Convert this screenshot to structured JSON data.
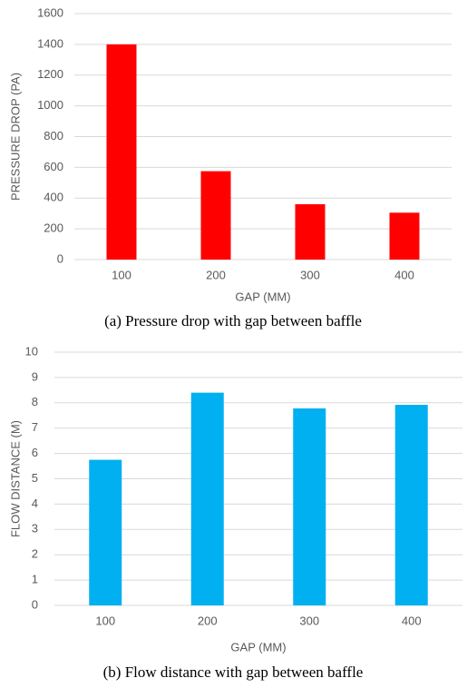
{
  "chart_data": [
    {
      "type": "bar",
      "caption": "(a) Pressure drop with gap between baffle",
      "x_label": "GAP (MM)",
      "y_label": "PRESSURE DROP (PA)",
      "categories": [
        "100",
        "200",
        "300",
        "400"
      ],
      "values": [
        1400,
        575,
        360,
        305
      ],
      "color": "#ff0000",
      "ylim": [
        0,
        1600
      ],
      "yticks": [
        0,
        200,
        400,
        600,
        800,
        1000,
        1200,
        1400,
        1600
      ],
      "grid": true
    },
    {
      "type": "bar",
      "caption": "(b) Flow distance with gap between baffle",
      "x_label": "GAP (MM)",
      "y_label": "FLOW DISTANCE (M)",
      "categories": [
        "100",
        "200",
        "300",
        "400"
      ],
      "values": [
        5.75,
        8.4,
        7.78,
        7.92
      ],
      "color": "#00b0f0",
      "ylim": [
        0,
        10
      ],
      "yticks": [
        0,
        1,
        2,
        3,
        4,
        5,
        6,
        7,
        8,
        9,
        10
      ],
      "grid": true
    }
  ]
}
